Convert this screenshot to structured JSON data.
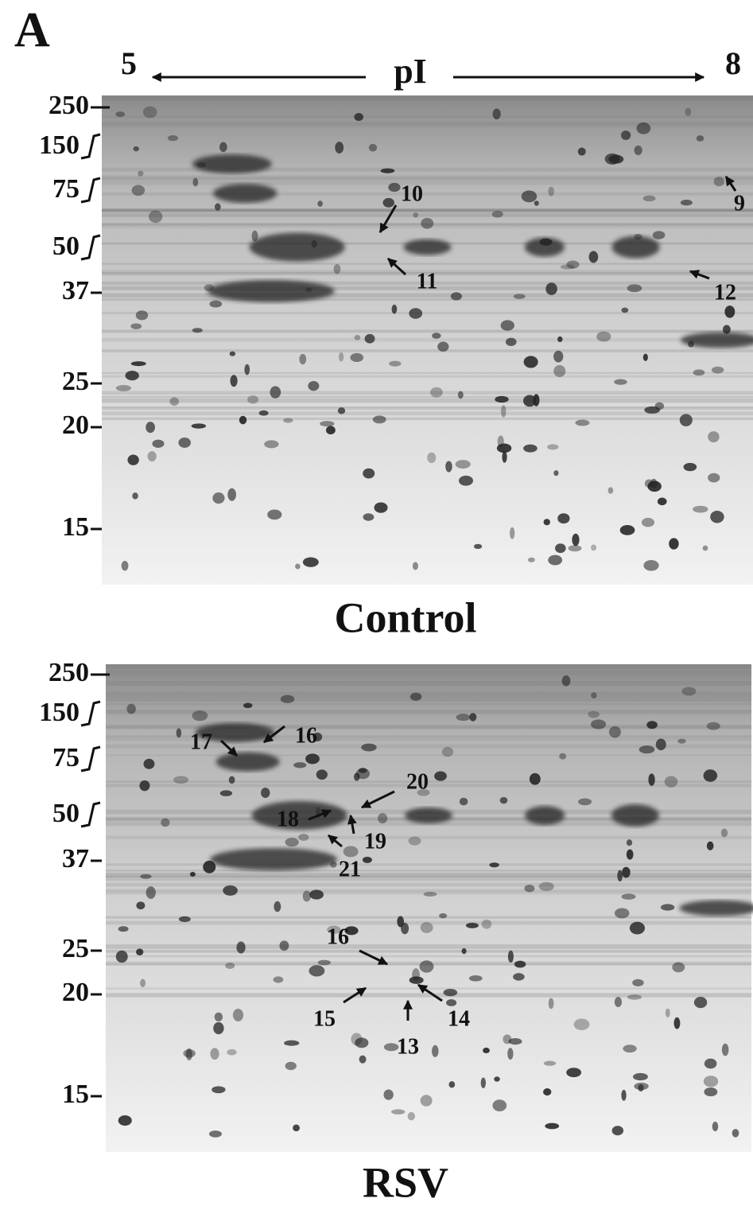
{
  "panel_label": "A",
  "pI_axis": {
    "left": "5",
    "title": "pI",
    "right": "8"
  },
  "panels": [
    {
      "caption": "Control",
      "mw_markers": [
        "250",
        "150",
        "75",
        "50",
        "37",
        "25",
        "20",
        "15"
      ],
      "spot_labels": [
        "9",
        "10",
        "11",
        "12"
      ]
    },
    {
      "caption": "RSV",
      "mw_markers": [
        "250",
        "150",
        "75",
        "50",
        "37",
        "25",
        "20",
        "15"
      ],
      "spot_labels": [
        "16",
        "17",
        "20",
        "18",
        "19",
        "21",
        "16",
        "15",
        "14",
        "13"
      ]
    }
  ]
}
